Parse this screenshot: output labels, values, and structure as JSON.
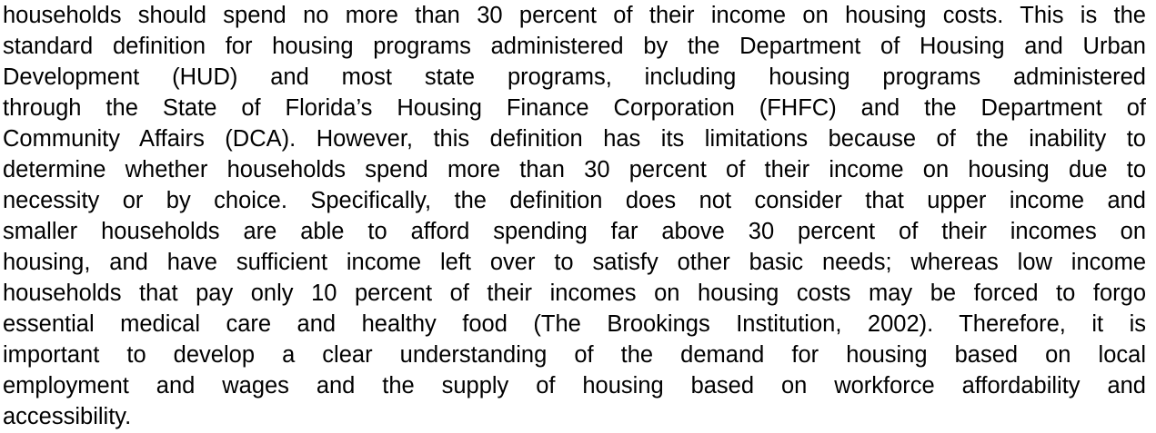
{
  "paragraph": {
    "lines": [
      "households should spend no more than 30 percent of their income on housing costs.  This is the",
      "standard definition for housing programs administered by the Department of Housing and Urban",
      "Development (HUD) and most state programs, including housing programs administered",
      "through the State of Florida’s Housing Finance Corporation (FHFC) and the Department of",
      "Community Affairs (DCA).  However, this definition has its limitations because of the inability to",
      "determine whether households spend more than 30 percent of their income on housing due to",
      "necessity or by choice.  Specifically, the definition does not consider that upper income and",
      "smaller households are able to afford spending far above 30 percent of their incomes on",
      "housing, and have sufficient income left over to satisfy other basic needs; whereas low income",
      "households that pay only 10 percent of their incomes on housing costs may be forced to forgo",
      "essential medical care and healthy food (The Brookings Institution, 2002).  Therefore, it is",
      "important to develop a clear understanding of the demand for housing based on local",
      "employment and wages and the supply of housing based on workforce affordability and",
      "accessibility."
    ]
  }
}
